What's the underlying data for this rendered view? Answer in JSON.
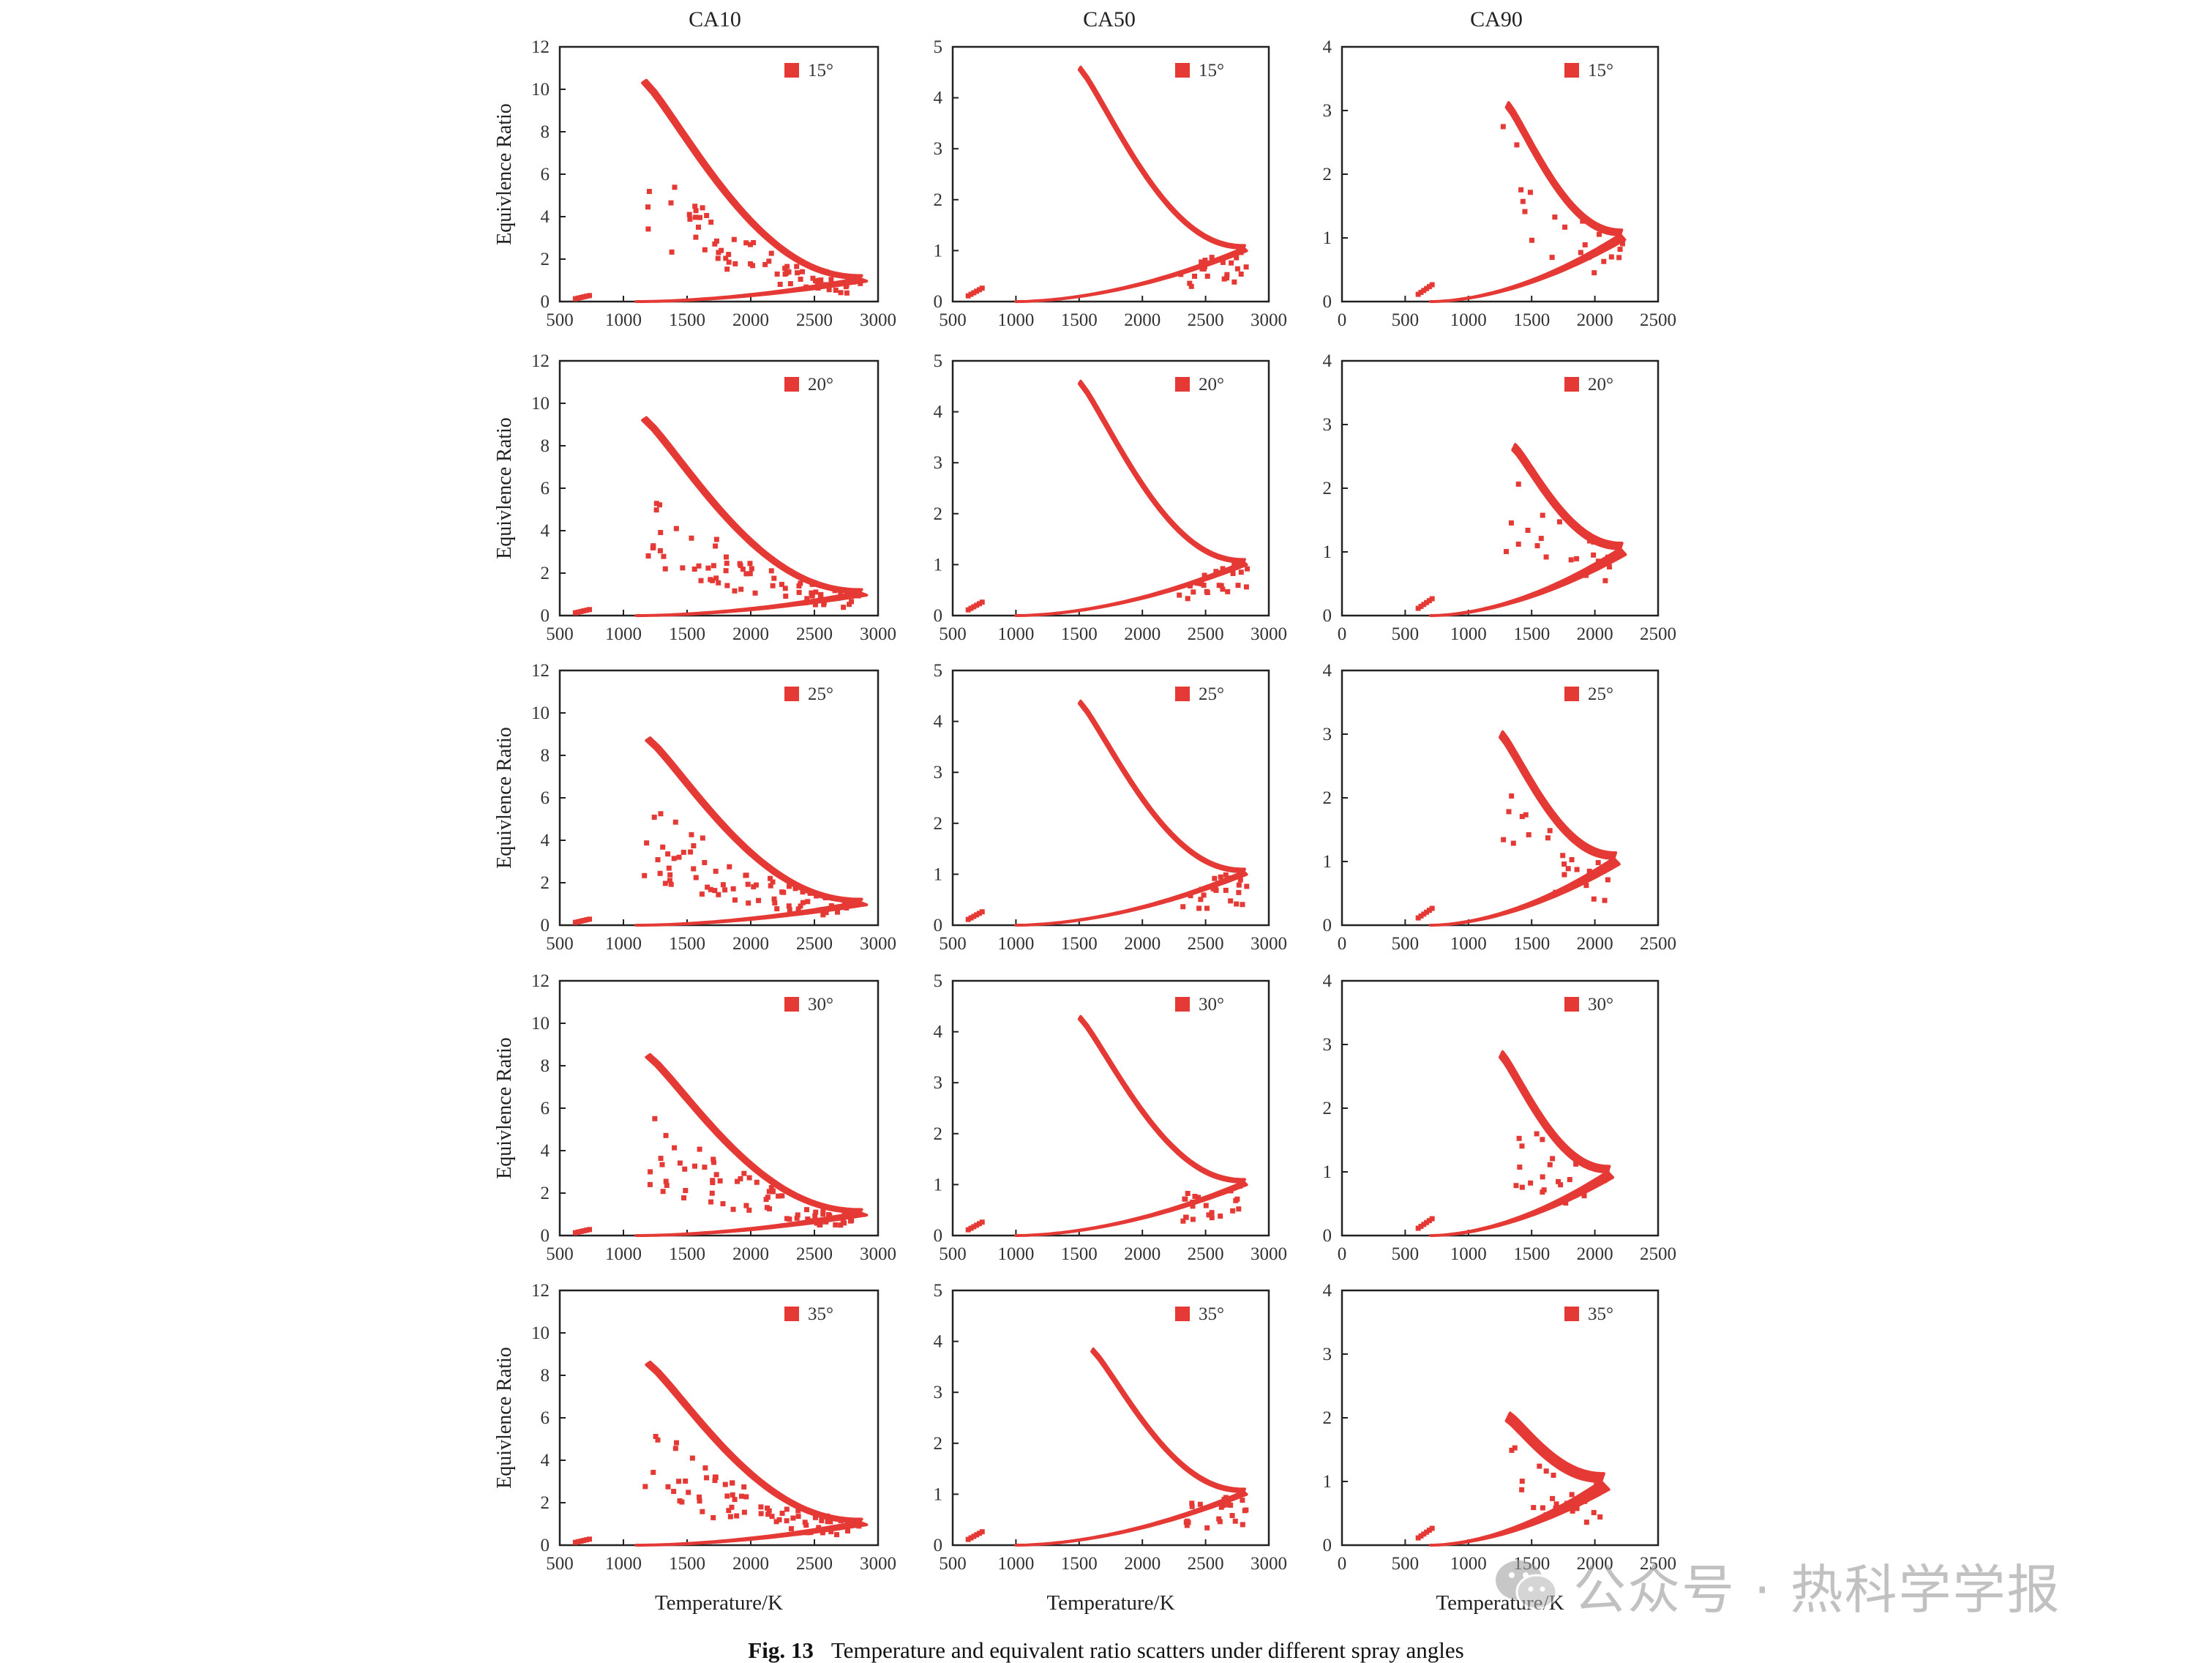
{
  "column_titles": [
    "CA10",
    "CA50",
    "CA90"
  ],
  "series_color": "#e53935",
  "caption": {
    "number": "Fig. 13",
    "text": "Temperature and equivalent ratio scatters under different spray angles"
  },
  "watermark": {
    "text": "公众号 · 热科学学报",
    "icon": "wechat-icon"
  },
  "chart_data": [
    {
      "id": "ca10-15",
      "type": "scatter",
      "column": "CA10",
      "legend": "15°",
      "ylabel": "Equivlence Ratio",
      "xlabel": "",
      "xlim": [
        500,
        3000
      ],
      "ylim": [
        0,
        12
      ],
      "xticks": [
        500,
        1000,
        1500,
        2000,
        2500,
        3000
      ],
      "yticks": [
        0,
        2,
        4,
        6,
        8,
        10,
        12
      ],
      "shape": {
        "peak": [
          1150,
          10.3
        ],
        "nose": [
          2850,
          1.1
        ],
        "tail": [
          1100,
          0
        ],
        "width": 0.5,
        "scatter_from": [
          1200,
          6.5
        ]
      },
      "series": [
        {
          "name": "15°"
        }
      ]
    },
    {
      "id": "ca50-15",
      "type": "scatter",
      "column": "CA50",
      "legend": "15°",
      "ylabel": "",
      "xlabel": "",
      "xlim": [
        500,
        3000
      ],
      "ylim": [
        0,
        5
      ],
      "xticks": [
        500,
        1000,
        1500,
        2000,
        2500,
        3000
      ],
      "yticks": [
        0,
        1,
        2,
        3,
        4,
        5
      ],
      "shape": {
        "peak": [
          1500,
          4.55
        ],
        "nose": [
          2800,
          1.05
        ],
        "tail": [
          1000,
          0
        ],
        "width": 0.2,
        "scatter_from": [
          2300,
          0.6
        ]
      },
      "series": [
        {
          "name": "15°"
        }
      ]
    },
    {
      "id": "ca90-15",
      "type": "scatter",
      "column": "CA90",
      "legend": "15°",
      "ylabel": "",
      "xlabel": "",
      "xlim": [
        0,
        2500
      ],
      "ylim": [
        0,
        4
      ],
      "xticks": [
        0,
        500,
        1000,
        1500,
        2000,
        2500
      ],
      "yticks": [
        0,
        1,
        2,
        3,
        4
      ],
      "shape": {
        "peak": [
          1300,
          3.05
        ],
        "nose": [
          2200,
          1.05
        ],
        "tail": [
          700,
          0
        ],
        "width": 0.3,
        "scatter_from": [
          1300,
          2.8
        ]
      },
      "series": [
        {
          "name": "15°"
        }
      ]
    },
    {
      "id": "ca10-20",
      "type": "scatter",
      "column": "CA10",
      "legend": "20°",
      "ylabel": "Equivlence Ratio",
      "xlabel": "",
      "xlim": [
        500,
        3000
      ],
      "ylim": [
        0,
        12
      ],
      "xticks": [
        500,
        1000,
        1500,
        2000,
        2500,
        3000
      ],
      "yticks": [
        0,
        2,
        4,
        6,
        8,
        10,
        12
      ],
      "shape": {
        "peak": [
          1150,
          9.2
        ],
        "nose": [
          2850,
          1.1
        ],
        "tail": [
          1100,
          0
        ],
        "width": 0.5,
        "scatter_from": [
          1200,
          6.0
        ]
      },
      "series": [
        {
          "name": "20°"
        }
      ]
    },
    {
      "id": "ca50-20",
      "type": "scatter",
      "column": "CA50",
      "legend": "20°",
      "ylabel": "",
      "xlabel": "",
      "xlim": [
        500,
        3000
      ],
      "ylim": [
        0,
        5
      ],
      "xticks": [
        500,
        1000,
        1500,
        2000,
        2500,
        3000
      ],
      "yticks": [
        0,
        1,
        2,
        3,
        4,
        5
      ],
      "shape": {
        "peak": [
          1500,
          4.55
        ],
        "nose": [
          2800,
          1.05
        ],
        "tail": [
          1000,
          0
        ],
        "width": 0.2,
        "scatter_from": [
          2300,
          0.6
        ]
      },
      "series": [
        {
          "name": "20°"
        }
      ]
    },
    {
      "id": "ca90-20",
      "type": "scatter",
      "column": "CA90",
      "legend": "20°",
      "ylabel": "",
      "xlabel": "",
      "xlim": [
        0,
        2500
      ],
      "ylim": [
        0,
        4
      ],
      "xticks": [
        0,
        500,
        1000,
        1500,
        2000,
        2500
      ],
      "yticks": [
        0,
        1,
        2,
        3,
        4
      ],
      "shape": {
        "peak": [
          1350,
          2.6
        ],
        "nose": [
          2200,
          1.05
        ],
        "tail": [
          700,
          0
        ],
        "width": 0.35,
        "scatter_from": [
          1250,
          2.5
        ]
      },
      "series": [
        {
          "name": "20°"
        }
      ]
    },
    {
      "id": "ca10-25",
      "type": "scatter",
      "column": "CA10",
      "legend": "25°",
      "ylabel": "Equivlence Ratio",
      "xlabel": "",
      "xlim": [
        500,
        3000
      ],
      "ylim": [
        0,
        12
      ],
      "xticks": [
        500,
        1000,
        1500,
        2000,
        2500,
        3000
      ],
      "yticks": [
        0,
        2,
        4,
        6,
        8,
        10,
        12
      ],
      "shape": {
        "peak": [
          1180,
          8.7
        ],
        "nose": [
          2850,
          1.1
        ],
        "tail": [
          1100,
          0
        ],
        "width": 0.5,
        "scatter_from": [
          1200,
          6.0
        ]
      },
      "series": [
        {
          "name": "25°"
        }
      ]
    },
    {
      "id": "ca50-25",
      "type": "scatter",
      "column": "CA50",
      "legend": "25°",
      "ylabel": "",
      "xlabel": "",
      "xlim": [
        500,
        3000
      ],
      "ylim": [
        0,
        5
      ],
      "xticks": [
        500,
        1000,
        1500,
        2000,
        2500,
        3000
      ],
      "yticks": [
        0,
        1,
        2,
        3,
        4,
        5
      ],
      "shape": {
        "peak": [
          1500,
          4.35
        ],
        "nose": [
          2800,
          1.05
        ],
        "tail": [
          1000,
          0
        ],
        "width": 0.2,
        "scatter_from": [
          2300,
          0.7
        ]
      },
      "series": [
        {
          "name": "25°"
        }
      ]
    },
    {
      "id": "ca90-25",
      "type": "scatter",
      "column": "CA90",
      "legend": "25°",
      "ylabel": "",
      "xlabel": "",
      "xlim": [
        0,
        2500
      ],
      "ylim": [
        0,
        4
      ],
      "xticks": [
        0,
        500,
        1000,
        1500,
        2000,
        2500
      ],
      "yticks": [
        0,
        1,
        2,
        3,
        4
      ],
      "shape": {
        "peak": [
          1250,
          2.95
        ],
        "nose": [
          2150,
          1.05
        ],
        "tail": [
          700,
          0
        ],
        "width": 0.35,
        "scatter_from": [
          1250,
          2.4
        ]
      },
      "series": [
        {
          "name": "25°"
        }
      ]
    },
    {
      "id": "ca10-30",
      "type": "scatter",
      "column": "CA10",
      "legend": "30°",
      "ylabel": "Equivlence Ratio",
      "xlabel": "",
      "xlim": [
        500,
        3000
      ],
      "ylim": [
        0,
        12
      ],
      "xticks": [
        500,
        1000,
        1500,
        2000,
        2500,
        3000
      ],
      "yticks": [
        0,
        2,
        4,
        6,
        8,
        10,
        12
      ],
      "shape": {
        "peak": [
          1180,
          8.4
        ],
        "nose": [
          2850,
          1.1
        ],
        "tail": [
          1100,
          0
        ],
        "width": 0.5,
        "scatter_from": [
          1200,
          6.0
        ]
      },
      "series": [
        {
          "name": "30°"
        }
      ]
    },
    {
      "id": "ca50-30",
      "type": "scatter",
      "column": "CA50",
      "legend": "30°",
      "ylabel": "",
      "xlabel": "",
      "xlim": [
        500,
        3000
      ],
      "ylim": [
        0,
        5
      ],
      "xticks": [
        500,
        1000,
        1500,
        2000,
        2500,
        3000
      ],
      "yticks": [
        0,
        1,
        2,
        3,
        4,
        5
      ],
      "shape": {
        "peak": [
          1500,
          4.25
        ],
        "nose": [
          2800,
          1.05
        ],
        "tail": [
          1000,
          0
        ],
        "width": 0.2,
        "scatter_from": [
          2300,
          0.8
        ]
      },
      "series": [
        {
          "name": "30°"
        }
      ]
    },
    {
      "id": "ca90-30",
      "type": "scatter",
      "column": "CA90",
      "legend": "30°",
      "ylabel": "",
      "xlabel": "",
      "xlim": [
        0,
        2500
      ],
      "ylim": [
        0,
        4
      ],
      "xticks": [
        0,
        500,
        1000,
        1500,
        2000,
        2500
      ],
      "yticks": [
        0,
        1,
        2,
        3,
        4
      ],
      "shape": {
        "peak": [
          1250,
          2.8
        ],
        "nose": [
          2100,
          1.0
        ],
        "tail": [
          700,
          0
        ],
        "width": 0.35,
        "scatter_from": [
          1300,
          2.1
        ]
      },
      "series": [
        {
          "name": "30°"
        }
      ]
    },
    {
      "id": "ca10-35",
      "type": "scatter",
      "column": "CA10",
      "legend": "35°",
      "ylabel": "Equivlence Ratio",
      "xlabel": "Temperature/K",
      "xlim": [
        500,
        3000
      ],
      "ylim": [
        0,
        12
      ],
      "xticks": [
        500,
        1000,
        1500,
        2000,
        2500,
        3000
      ],
      "yticks": [
        0,
        2,
        4,
        6,
        8,
        10,
        12
      ],
      "shape": {
        "peak": [
          1180,
          8.5
        ],
        "nose": [
          2850,
          1.1
        ],
        "tail": [
          1100,
          0
        ],
        "width": 0.5,
        "scatter_from": [
          1200,
          6.0
        ]
      },
      "series": [
        {
          "name": "35°"
        }
      ]
    },
    {
      "id": "ca50-35",
      "type": "scatter",
      "column": "CA50",
      "legend": "35°",
      "ylabel": "",
      "xlabel": "Temperature/K",
      "xlim": [
        500,
        3000
      ],
      "ylim": [
        0,
        5
      ],
      "xticks": [
        500,
        1000,
        1500,
        2000,
        2500,
        3000
      ],
      "yticks": [
        0,
        1,
        2,
        3,
        4,
        5
      ],
      "shape": {
        "peak": [
          1600,
          3.8
        ],
        "nose": [
          2800,
          1.05
        ],
        "tail": [
          1000,
          0
        ],
        "width": 0.2,
        "scatter_from": [
          2300,
          0.8
        ]
      },
      "series": [
        {
          "name": "35°"
        }
      ]
    },
    {
      "id": "ca90-35",
      "type": "scatter",
      "column": "CA90",
      "legend": "35°",
      "ylabel": "",
      "xlabel": "Temperature/K",
      "xlim": [
        0,
        2500
      ],
      "ylim": [
        0,
        4
      ],
      "xticks": [
        0,
        500,
        1000,
        1500,
        2000,
        2500
      ],
      "yticks": [
        0,
        1,
        2,
        3,
        4
      ],
      "shape": {
        "peak": [
          1300,
          1.95
        ],
        "nose": [
          2050,
          1.0
        ],
        "tail": [
          700,
          0
        ],
        "width": 0.5,
        "scatter_from": [
          1300,
          1.7
        ]
      },
      "series": [
        {
          "name": "35°"
        }
      ]
    }
  ]
}
